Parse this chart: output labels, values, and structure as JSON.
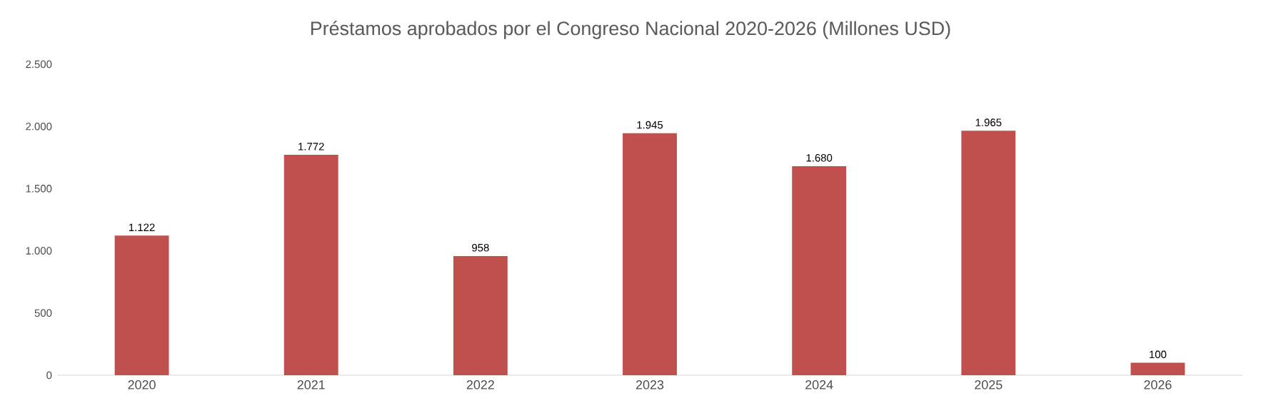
{
  "chart_data": {
    "type": "bar",
    "title": "Préstamos aprobados por el Congreso Nacional 2020-2026 (Millones USD)",
    "categories": [
      "2020",
      "2021",
      "2022",
      "2023",
      "2024",
      "2025",
      "2026"
    ],
    "values": [
      1122,
      1772,
      958,
      1945,
      1680,
      1965,
      100
    ],
    "value_labels": [
      "1.122",
      "1.772",
      "958",
      "1.945",
      "1.680",
      "1.965",
      "100"
    ],
    "color": "#c0504d",
    "ylim": [
      0,
      2500
    ],
    "yticks": [
      0,
      {
        "value": 500,
        "label": "500"
      },
      {
        "value": 1000,
        "label": "1.000"
      },
      {
        "value": 1500,
        "label": "1.500"
      },
      {
        "value": 2000,
        "label": "2.000"
      },
      {
        "value": 2500,
        "label": "2.500"
      }
    ],
    "grid": false
  }
}
